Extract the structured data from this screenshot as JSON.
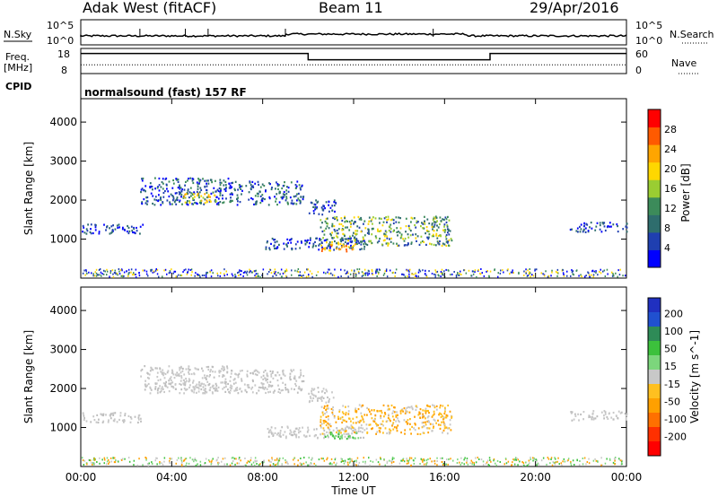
{
  "chart_data": {
    "type": "heatmap",
    "header": {
      "station": "Adak West (fitACF)",
      "beam": "Beam 11",
      "date": "29/Apr/2016"
    },
    "x": {
      "label": "Time UT",
      "ticks": [
        "00:00",
        "04:00",
        "08:00",
        "12:00",
        "16:00",
        "20:00",
        "00:00"
      ],
      "range_hours": [
        0,
        24
      ]
    },
    "noise_panel": {
      "left_label": "N.Sky",
      "left_ticks": [
        "10^5",
        "10^0"
      ],
      "right_label": "N.Search",
      "right_ticks": [
        "10^5",
        "10^0"
      ]
    },
    "freq_panel": {
      "left_label_line1": "Freq.",
      "left_label_line2": "[MHz]",
      "left_ticks": [
        "18",
        "8"
      ],
      "right_label": "Nave",
      "right_ticks": [
        "60",
        "0"
      ],
      "freq_steps": [
        {
          "t0": 0,
          "t1": 10,
          "level": 0.8
        },
        {
          "t0": 10,
          "t1": 18,
          "level": 0.55
        },
        {
          "t0": 18,
          "t1": 24,
          "level": 0.8
        }
      ],
      "nave_level": 0.35
    },
    "cpid_panel": {
      "label": "CPID",
      "text": "normalsound (fast) 157 RF"
    },
    "power_panel": {
      "ylabel": "Slant Range [km]",
      "yticks": [
        1000,
        2000,
        3000,
        4000
      ],
      "ylim": [
        0,
        4600
      ],
      "colorbar_label": "Power [dB]",
      "colorbar_ticks": [
        4,
        8,
        12,
        16,
        20,
        24,
        28
      ],
      "colorbar_range": [
        0,
        32
      ],
      "colorbar_colors": [
        "#0000ff",
        "#1f3fb0",
        "#2e6d6d",
        "#3c8b5a",
        "#9acd32",
        "#ffd700",
        "#ffa500",
        "#ff5a00",
        "#ff0000"
      ]
    },
    "velocity_panel": {
      "ylabel": "Slant Range [km]",
      "yticks": [
        1000,
        2000,
        3000,
        4000
      ],
      "ylim": [
        0,
        4600
      ],
      "colorbar_label": "Velocity [m s^-1]",
      "colorbar_ticks": [
        "200",
        "100",
        "50",
        "15",
        "-15",
        "-50",
        "-100",
        "-200"
      ],
      "colorbar_colors": [
        "#2030c0",
        "#2050d0",
        "#2e8b57",
        "#3cc13c",
        "#7cd67c",
        "#c8c8c8",
        "#ffc020",
        "#ffa000",
        "#ff7000",
        "#ff3000",
        "#ff0000"
      ]
    },
    "echo_regions": [
      {
        "t0": 0.0,
        "t1": 2.8,
        "r0": 1150,
        "r1": 1400,
        "power": "blue",
        "vel": "grey"
      },
      {
        "t0": 2.6,
        "t1": 6.5,
        "r0": 1900,
        "r1": 2600,
        "power": "blue-green",
        "vel": "grey"
      },
      {
        "t0": 4.5,
        "t1": 6.0,
        "r0": 1950,
        "r1": 2200,
        "power": "yellow",
        "vel": "grey"
      },
      {
        "t0": 6.5,
        "t1": 9.8,
        "r0": 1900,
        "r1": 2500,
        "power": "blue-green",
        "vel": "grey"
      },
      {
        "t0": 10.0,
        "t1": 11.2,
        "r0": 1650,
        "r1": 2050,
        "power": "blue",
        "vel": "grey"
      },
      {
        "t0": 8.1,
        "t1": 12.5,
        "r0": 750,
        "r1": 1050,
        "power": "blue",
        "vel": "grey"
      },
      {
        "t0": 10.5,
        "t1": 16.3,
        "r0": 850,
        "r1": 1600,
        "power": "green-yellow",
        "vel": "orange"
      },
      {
        "t0": 10.5,
        "t1": 12.2,
        "r0": 700,
        "r1": 900,
        "power": "orange",
        "vel": "green"
      },
      {
        "t0": 21.5,
        "t1": 24.0,
        "r0": 1200,
        "r1": 1450,
        "power": "blue",
        "vel": "grey"
      }
    ]
  }
}
